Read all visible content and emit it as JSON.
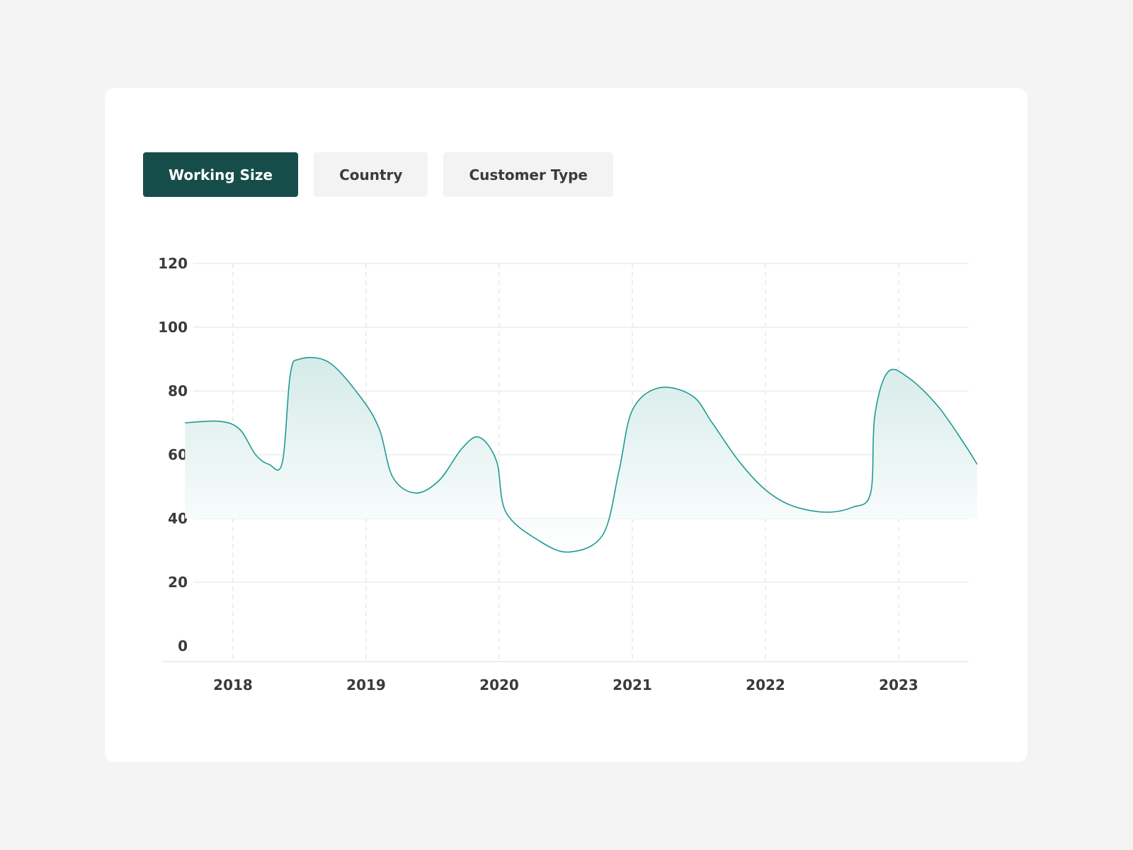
{
  "tabs": [
    {
      "label": "Working Size",
      "active": true
    },
    {
      "label": "Country",
      "active": false
    },
    {
      "label": "Customer Type",
      "active": false
    }
  ],
  "colors": {
    "accent": "#164d4b",
    "line": "#1f9a92",
    "area_top": "#d5ebe9",
    "area_bottom": "#ffffff",
    "grid": "#e9eeee",
    "vgrid": "#e7e7e7",
    "axis_text": "#3a3a3a",
    "tab_inactive_bg": "#f3f3f3"
  },
  "chart_data": {
    "type": "area",
    "title": "",
    "xlabel": "",
    "ylabel": "",
    "ylim": [
      0,
      120
    ],
    "xlim": [
      2017.64,
      2023.68
    ],
    "yticks": [
      0,
      20,
      40,
      60,
      80,
      100,
      120
    ],
    "xticks": [
      2018,
      2019,
      2020,
      2021,
      2022,
      2023
    ],
    "grid": {
      "horizontal": true,
      "vertical_dashed": true
    },
    "baseline": 40,
    "series": [
      {
        "values": [
          [
            2017.64,
            70
          ],
          [
            2017.9,
            70.5
          ],
          [
            2018.05,
            68
          ],
          [
            2018.17,
            60
          ],
          [
            2018.27,
            57
          ],
          [
            2018.37,
            57.5
          ],
          [
            2018.43,
            85
          ],
          [
            2018.5,
            90
          ],
          [
            2018.72,
            89
          ],
          [
            2018.96,
            78
          ],
          [
            2019.1,
            68
          ],
          [
            2019.2,
            53
          ],
          [
            2019.37,
            48
          ],
          [
            2019.55,
            52
          ],
          [
            2019.72,
            62
          ],
          [
            2019.85,
            65.5
          ],
          [
            2019.98,
            58
          ],
          [
            2020.05,
            42
          ],
          [
            2020.3,
            33
          ],
          [
            2020.53,
            29.5
          ],
          [
            2020.78,
            35
          ],
          [
            2020.9,
            55
          ],
          [
            2021.0,
            74
          ],
          [
            2021.2,
            81
          ],
          [
            2021.45,
            78.5
          ],
          [
            2021.6,
            70
          ],
          [
            2021.8,
            58
          ],
          [
            2022.0,
            49
          ],
          [
            2022.2,
            44
          ],
          [
            2022.45,
            42
          ],
          [
            2022.65,
            43.5
          ],
          [
            2022.79,
            48
          ],
          [
            2022.82,
            72
          ],
          [
            2022.92,
            86
          ],
          [
            2023.08,
            84
          ],
          [
            2023.3,
            75
          ],
          [
            2023.5,
            63
          ],
          [
            2023.59,
            57
          ]
        ]
      }
    ]
  }
}
